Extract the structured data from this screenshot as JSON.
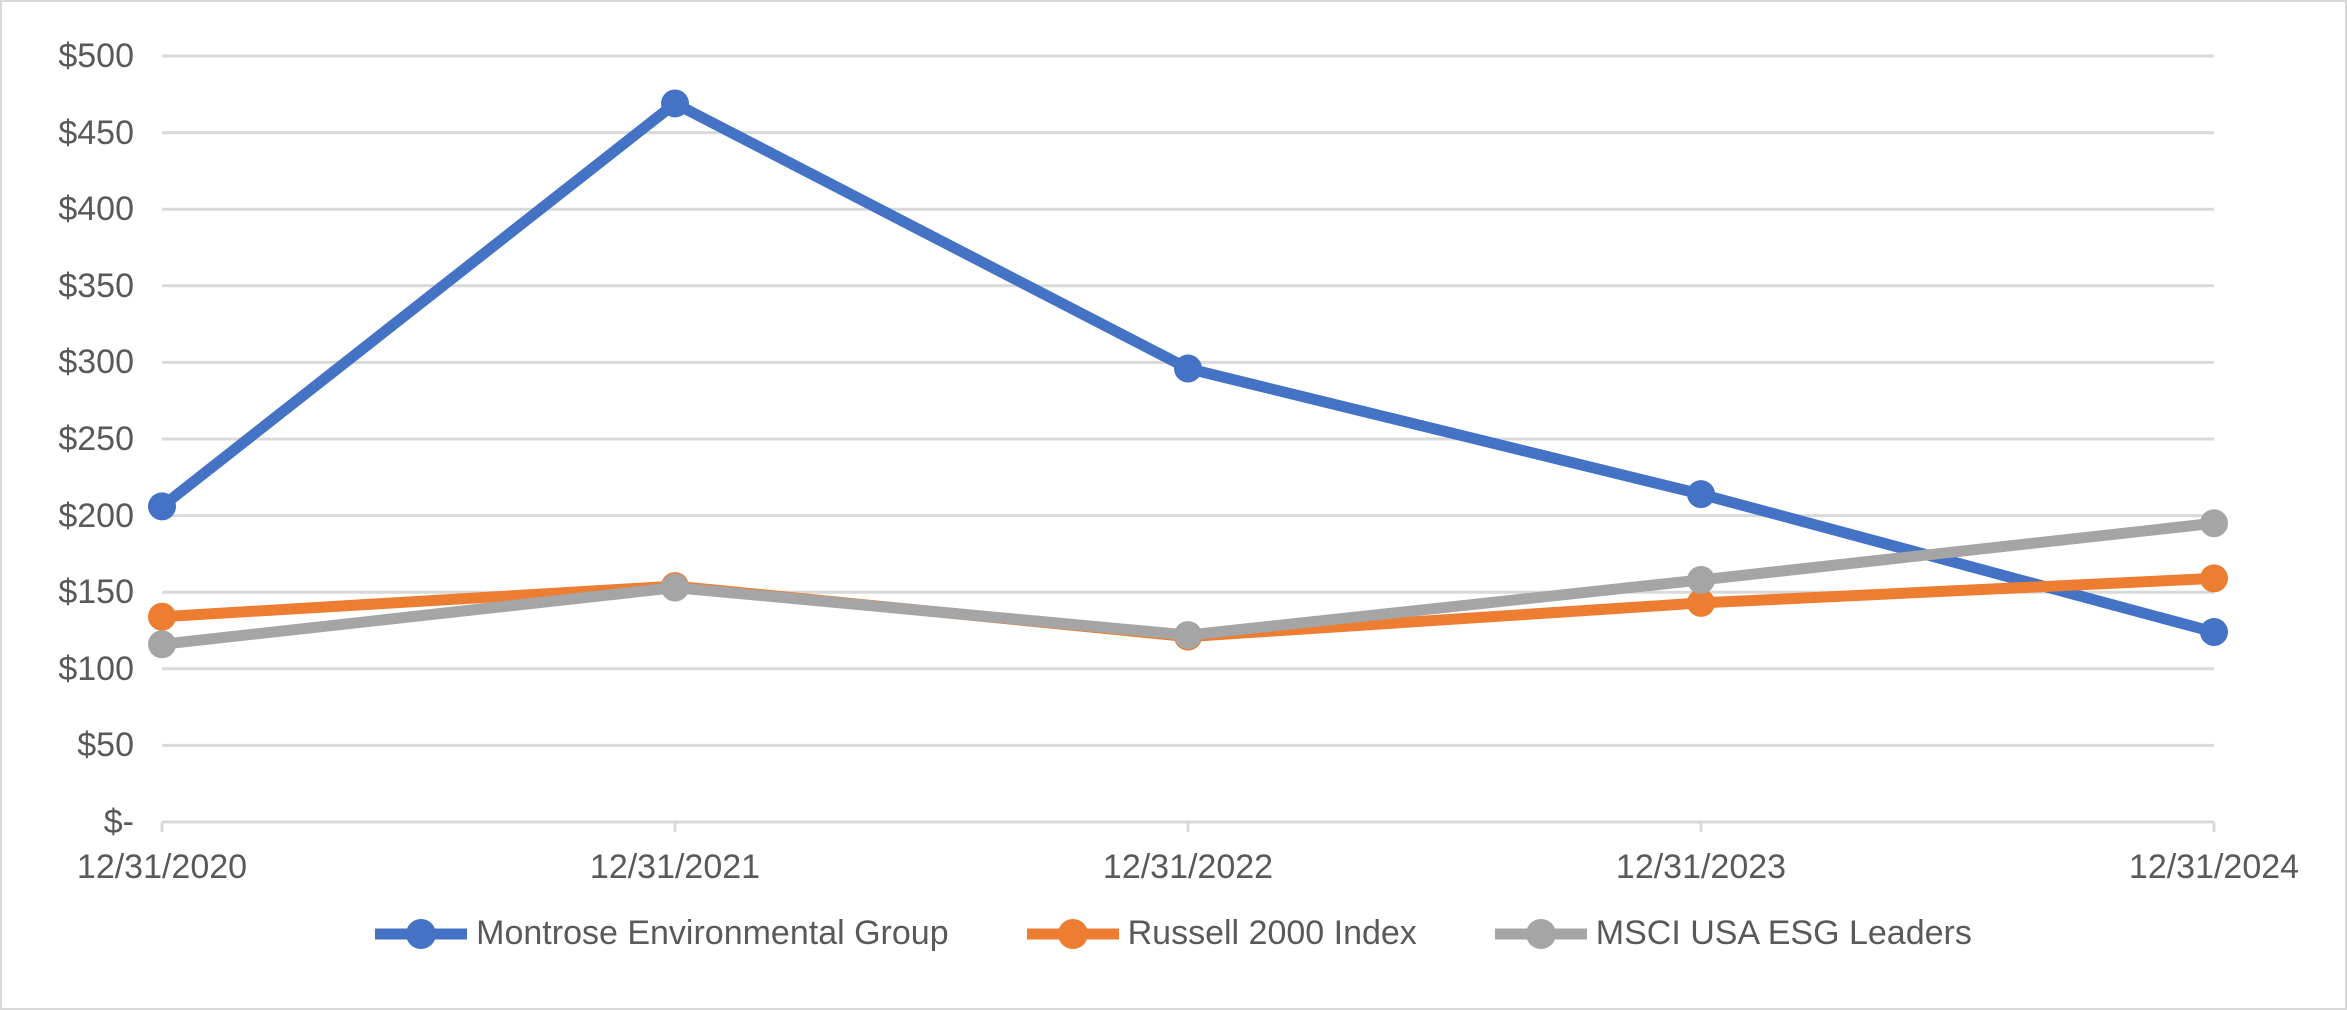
{
  "chart_data": {
    "type": "line",
    "title": "",
    "x": [
      "12/31/2020",
      "12/31/2021",
      "12/31/2022",
      "12/31/2023",
      "12/31/2024"
    ],
    "series": [
      {
        "name": "Montrose Environmental Group",
        "color": "#4472C4",
        "values": [
          206,
          469,
          296,
          214,
          124
        ]
      },
      {
        "name": "Russell 2000 Index",
        "color": "#ED7D31",
        "values": [
          134,
          154,
          121,
          143,
          159
        ]
      },
      {
        "name": "MSCI USA ESG Leaders",
        "color": "#A5A5A5",
        "values": [
          116,
          153,
          122,
          158,
          195
        ]
      }
    ],
    "ylim": [
      0,
      500
    ],
    "y_tick_step": 50,
    "y_tick_labels": [
      "$-",
      "$50",
      "$100",
      "$150",
      "$200",
      "$250",
      "$300",
      "$350",
      "$400",
      "$450",
      "$500"
    ],
    "grid": "horizontal",
    "gridline_color": "#D9D9D9",
    "axis_line_color": "#D9D9D9",
    "label_color": "#595959",
    "legend_position": "bottom"
  }
}
